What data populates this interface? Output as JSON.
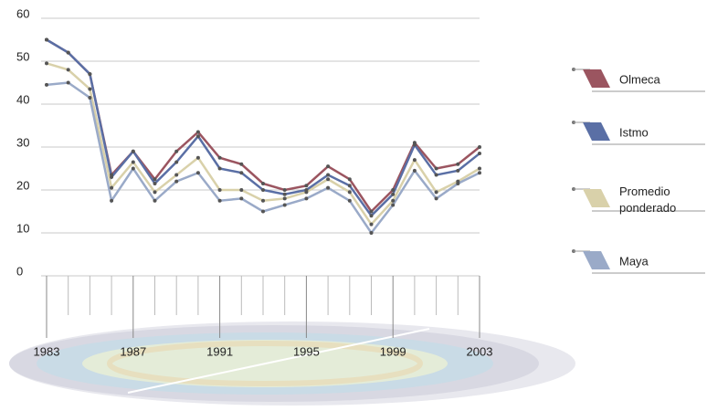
{
  "chart_data": {
    "type": "line",
    "categories": [
      "1983",
      null,
      null,
      null,
      "1987",
      null,
      null,
      null,
      "1991",
      null,
      null,
      null,
      "1995",
      null,
      null,
      null,
      "1999",
      null,
      null,
      null,
      "2003"
    ],
    "series": [
      {
        "name": "Olmeca",
        "color": "#9b5560",
        "values": [
          55,
          52,
          47,
          23.5,
          29,
          22.5,
          29,
          33.5,
          27.5,
          26,
          21.5,
          20,
          21,
          25.5,
          22.5,
          15,
          20,
          31,
          25,
          26,
          30
        ]
      },
      {
        "name": "Istmo",
        "color": "#5a6fa5",
        "values": [
          55,
          52,
          47,
          23,
          29,
          21.5,
          26.5,
          32.5,
          25,
          24,
          20,
          19,
          20,
          23.5,
          21,
          14,
          19,
          30.5,
          23.5,
          24.5,
          28.5
        ]
      },
      {
        "name": "Promedio ponderado",
        "color": "#d9d1aa",
        "values": [
          49.5,
          48,
          43.5,
          20.5,
          26.5,
          19.5,
          23.5,
          27.5,
          20,
          20,
          17.5,
          18,
          19.5,
          22.5,
          19.5,
          12,
          17.5,
          27,
          19.5,
          22,
          25
        ]
      },
      {
        "name": "Maya",
        "color": "#9aaac8",
        "values": [
          44.5,
          45,
          41.5,
          17.5,
          25,
          17.5,
          22,
          24,
          17.5,
          18,
          15,
          16.5,
          18,
          20.5,
          17.5,
          10,
          16.5,
          24.5,
          18,
          21.5,
          24
        ]
      }
    ],
    "ylim": [
      0,
      60
    ],
    "yticks": [
      0,
      10,
      20,
      30,
      40,
      50,
      60
    ],
    "grid": true
  }
}
